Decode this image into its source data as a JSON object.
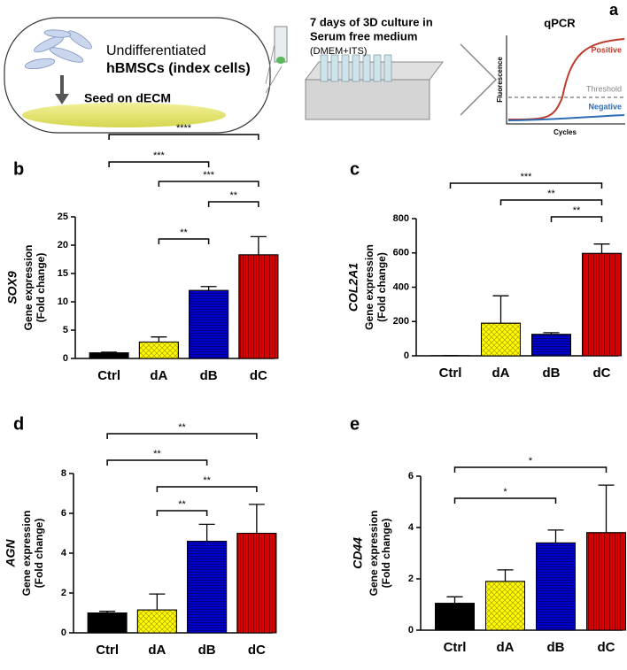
{
  "schematic": {
    "panel": "a",
    "cells_line1": "Undifferentiated",
    "cells_line2": "hBMSCs (index cells)",
    "seed": "Seed on dECM",
    "culture_line1": "7 days of 3D culture in",
    "culture_line2": "Serum free medium",
    "culture_line3": "(DMEM+ITS)",
    "qpcr": "qPCR",
    "positive": "Positive",
    "threshold": "Threshold",
    "negative": "Negative",
    "fluorescence": "Fluorescence",
    "cycles": "Cycles"
  },
  "chart_data": [
    {
      "type": "bar",
      "panel": "b",
      "gene": "SOX9",
      "ylabel": [
        "Gene expression",
        "(Fold change)"
      ],
      "categories": [
        "Ctrl",
        "dA",
        "dB",
        "dC"
      ],
      "values": [
        1,
        2.9,
        12,
        18.3
      ],
      "errors": [
        0.1,
        0.9,
        0.7,
        3.2
      ],
      "colors": [
        "#000000",
        "#ffff00",
        "#0000cc",
        "#dd0000"
      ],
      "ylim": [
        0,
        25
      ],
      "yticks": [
        0,
        5,
        10,
        15,
        20,
        25
      ],
      "significance": [
        {
          "label": "***",
          "between": [
            0,
            2
          ]
        },
        {
          "label": "****",
          "between": [
            0,
            3
          ]
        },
        {
          "label": "**",
          "between": [
            1,
            2
          ]
        },
        {
          "label": "***",
          "between": [
            1,
            3
          ]
        },
        {
          "label": "**",
          "between": [
            2,
            3
          ]
        }
      ]
    },
    {
      "type": "bar",
      "panel": "c",
      "gene": "COL2A1",
      "ylabel": [
        "Gene expression",
        "(Fold change)"
      ],
      "categories": [
        "Ctrl",
        "dA",
        "dB",
        "dC"
      ],
      "values": [
        1,
        190,
        125,
        597
      ],
      "errors": [
        0,
        160,
        10,
        55
      ],
      "colors": [
        "#000000",
        "#ffff00",
        "#0000cc",
        "#dd0000"
      ],
      "ylim": [
        0,
        800
      ],
      "yticks": [
        0,
        200,
        400,
        600,
        800
      ],
      "significance": [
        {
          "label": "***",
          "between": [
            0,
            3
          ]
        },
        {
          "label": "**",
          "between": [
            1,
            3
          ]
        },
        {
          "label": "**",
          "between": [
            2,
            3
          ]
        }
      ]
    },
    {
      "type": "bar",
      "panel": "d",
      "gene": "AGN",
      "ylabel": [
        "Gene expression",
        "(Fold change)"
      ],
      "categories": [
        "Ctrl",
        "dA",
        "dB",
        "dC"
      ],
      "values": [
        1,
        1.15,
        4.6,
        5
      ],
      "errors": [
        0.08,
        0.8,
        0.85,
        1.45
      ],
      "colors": [
        "#000000",
        "#ffff00",
        "#0000cc",
        "#dd0000"
      ],
      "ylim": [
        0,
        8
      ],
      "yticks": [
        0,
        2,
        4,
        6,
        8
      ],
      "significance": [
        {
          "label": "**",
          "between": [
            0,
            3
          ]
        },
        {
          "label": "**",
          "between": [
            0,
            2
          ]
        },
        {
          "label": "**",
          "between": [
            1,
            3
          ]
        },
        {
          "label": "**",
          "between": [
            1,
            2
          ]
        }
      ]
    },
    {
      "type": "bar",
      "panel": "e",
      "gene": "CD44",
      "ylabel": [
        "Gene expression",
        "(Fold change)"
      ],
      "categories": [
        "Ctrl",
        "dA",
        "dB",
        "dC"
      ],
      "values": [
        1.05,
        1.9,
        3.4,
        3.8
      ],
      "errors": [
        0.25,
        0.45,
        0.5,
        1.85
      ],
      "colors": [
        "#000000",
        "#ffff00",
        "#0000cc",
        "#dd0000"
      ],
      "ylim": [
        0,
        6
      ],
      "yticks": [
        0,
        2,
        4,
        6
      ],
      "significance": [
        {
          "label": "*",
          "between": [
            0,
            3
          ]
        },
        {
          "label": "*",
          "between": [
            0,
            2
          ]
        }
      ]
    }
  ]
}
